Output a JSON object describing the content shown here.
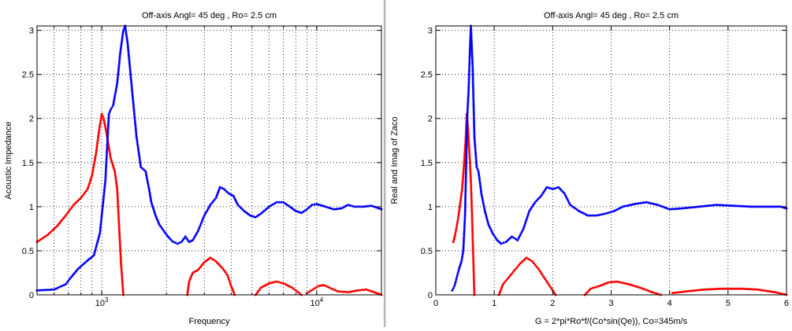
{
  "colors": {
    "real": "#ff0000",
    "imag": "#0000ff",
    "axis": "#000000",
    "grid": "#000000",
    "divider": "#d4d0c8"
  },
  "chart_data": [
    {
      "type": "line",
      "title": "Off-axis Angl= 45 deg  , Ro= 2.5 cm",
      "xlabel": "Frequency",
      "ylabel": "Acoustic Impedance",
      "xscale": "log",
      "xlim": [
        500,
        20000
      ],
      "ylim": [
        0,
        3.05
      ],
      "xticks": [
        1000,
        10000
      ],
      "xtick_labels": [
        "10",
        "10"
      ],
      "xtick_superscripts": [
        "3",
        "4"
      ],
      "yticks": [
        0,
        0.5,
        1,
        1.5,
        2,
        2.5,
        3
      ],
      "ytick_labels": [
        "0",
        "0.5",
        "1",
        "1.5",
        "2",
        "2.5",
        "3"
      ],
      "grid": true,
      "marker": "dot",
      "series": [
        {
          "color": "#ff0000",
          "segments": [
            [
              [
                500,
                0.6
              ],
              [
                560,
                0.68
              ],
              [
                620,
                0.78
              ],
              [
                680,
                0.9
              ],
              [
                740,
                1.02
              ],
              [
                800,
                1.1
              ],
              [
                860,
                1.2
              ],
              [
                900,
                1.35
              ],
              [
                940,
                1.6
              ],
              [
                970,
                1.85
              ],
              [
                1000,
                2.05
              ],
              [
                1020,
                2.0
              ],
              [
                1050,
                1.85
              ],
              [
                1100,
                1.55
              ],
              [
                1150,
                1.4
              ],
              [
                1180,
                1.2
              ],
              [
                1200,
                0.85
              ],
              [
                1230,
                0.35
              ],
              [
                1260,
                0.0
              ]
            ],
            [
              [
                2500,
                0.0
              ],
              [
                2550,
                0.15
              ],
              [
                2650,
                0.25
              ],
              [
                2800,
                0.28
              ],
              [
                3000,
                0.37
              ],
              [
                3200,
                0.42
              ],
              [
                3400,
                0.38
              ],
              [
                3650,
                0.3
              ],
              [
                3850,
                0.22
              ],
              [
                4000,
                0.1
              ],
              [
                4150,
                0.0
              ]
            ],
            [
              [
                5200,
                0.0
              ],
              [
                5500,
                0.08
              ],
              [
                6000,
                0.13
              ],
              [
                6500,
                0.15
              ],
              [
                7000,
                0.13
              ],
              [
                7700,
                0.08
              ],
              [
                8300,
                0.02
              ],
              [
                8500,
                0.0
              ]
            ],
            [
              [
                9000,
                0.02
              ],
              [
                9600,
                0.06
              ],
              [
                10200,
                0.1
              ],
              [
                10800,
                0.11
              ],
              [
                11500,
                0.08
              ],
              [
                12500,
                0.04
              ],
              [
                14000,
                0.03
              ],
              [
                15500,
                0.05
              ],
              [
                17000,
                0.06
              ],
              [
                18500,
                0.03
              ],
              [
                20000,
                0.0
              ]
            ]
          ]
        },
        {
          "color": "#0000ff",
          "segments": [
            [
              [
                500,
                0.05
              ],
              [
                600,
                0.06
              ],
              [
                680,
                0.12
              ],
              [
                720,
                0.2
              ],
              [
                780,
                0.3
              ],
              [
                850,
                0.38
              ],
              [
                920,
                0.45
              ],
              [
                980,
                0.7
              ],
              [
                1010,
                1.0
              ],
              [
                1040,
                1.3
              ],
              [
                1060,
                1.7
              ],
              [
                1080,
                2.05
              ],
              [
                1100,
                2.1
              ],
              [
                1130,
                2.15
              ],
              [
                1180,
                2.4
              ],
              [
                1220,
                2.75
              ],
              [
                1260,
                3.0
              ],
              [
                1285,
                3.05
              ],
              [
                1320,
                2.85
              ],
              [
                1380,
                2.35
              ],
              [
                1450,
                1.8
              ],
              [
                1520,
                1.45
              ],
              [
                1600,
                1.4
              ],
              [
                1660,
                1.2
              ],
              [
                1700,
                1.05
              ],
              [
                1780,
                0.9
              ],
              [
                1850,
                0.8
              ],
              [
                1950,
                0.72
              ],
              [
                2050,
                0.65
              ],
              [
                2150,
                0.6
              ],
              [
                2250,
                0.58
              ],
              [
                2350,
                0.6
              ],
              [
                2450,
                0.66
              ],
              [
                2550,
                0.6
              ],
              [
                2650,
                0.62
              ],
              [
                2800,
                0.72
              ],
              [
                3000,
                0.9
              ],
              [
                3200,
                1.02
              ],
              [
                3400,
                1.1
              ],
              [
                3550,
                1.22
              ],
              [
                3700,
                1.2
              ],
              [
                3900,
                1.15
              ],
              [
                4100,
                1.12
              ],
              [
                4300,
                1.02
              ],
              [
                4600,
                0.95
              ],
              [
                4900,
                0.9
              ],
              [
                5200,
                0.88
              ],
              [
                5500,
                0.92
              ],
              [
                6000,
                1.0
              ],
              [
                6500,
                1.05
              ],
              [
                7000,
                1.05
              ],
              [
                7500,
                1.0
              ],
              [
                8000,
                0.95
              ],
              [
                8500,
                0.93
              ],
              [
                9000,
                0.97
              ],
              [
                9500,
                1.02
              ],
              [
                10000,
                1.03
              ],
              [
                11000,
                1.0
              ],
              [
                12000,
                0.97
              ],
              [
                13000,
                0.98
              ],
              [
                14000,
                1.02
              ],
              [
                15000,
                1.0
              ],
              [
                16500,
                1.0
              ],
              [
                18000,
                1.01
              ],
              [
                20000,
                0.97
              ]
            ]
          ]
        }
      ]
    },
    {
      "type": "line",
      "title": "Off-axis Angl= 45 deg  , Ro= 2.5 cm",
      "xlabel": "G = 2*pi*Ro*f/(Co*sin(Qe)), Co=345m/s",
      "ylabel": "Real and Imag of Zaco",
      "xscale": "linear",
      "xlim": [
        0,
        6
      ],
      "ylim": [
        0,
        3.05
      ],
      "xticks": [
        0,
        1,
        2,
        3,
        4,
        5,
        6
      ],
      "xtick_labels": [
        "0",
        "1",
        "2",
        "3",
        "4",
        "5",
        "6"
      ],
      "yticks": [
        0,
        0.5,
        1,
        1.5,
        2,
        2.5,
        3
      ],
      "ytick_labels": [
        "0",
        "0.5",
        "1",
        "1.5",
        "2",
        "2.5",
        "3"
      ],
      "grid": true,
      "marker": "dot",
      "series": [
        {
          "color": "#ff0000",
          "segments": [
            [
              [
                0.3,
                0.6
              ],
              [
                0.33,
                0.68
              ],
              [
                0.36,
                0.78
              ],
              [
                0.39,
                0.9
              ],
              [
                0.42,
                1.05
              ],
              [
                0.45,
                1.2
              ],
              [
                0.48,
                1.45
              ],
              [
                0.51,
                1.75
              ],
              [
                0.53,
                2.05
              ],
              [
                0.55,
                1.9
              ],
              [
                0.58,
                1.55
              ],
              [
                0.6,
                1.3
              ],
              [
                0.62,
                0.9
              ],
              [
                0.64,
                0.45
              ],
              [
                0.66,
                0.0
              ]
            ],
            [
              [
                1.08,
                0.0
              ],
              [
                1.15,
                0.12
              ],
              [
                1.25,
                0.2
              ],
              [
                1.35,
                0.28
              ],
              [
                1.45,
                0.36
              ],
              [
                1.55,
                0.42
              ],
              [
                1.65,
                0.38
              ],
              [
                1.75,
                0.3
              ],
              [
                1.85,
                0.2
              ],
              [
                1.95,
                0.1
              ],
              [
                2.05,
                0.0
              ]
            ],
            [
              [
                2.55,
                0.0
              ],
              [
                2.65,
                0.07
              ],
              [
                2.8,
                0.1
              ],
              [
                2.95,
                0.14
              ],
              [
                3.1,
                0.15
              ],
              [
                3.3,
                0.12
              ],
              [
                3.5,
                0.08
              ],
              [
                3.7,
                0.03
              ],
              [
                3.85,
                0.0
              ]
            ],
            [
              [
                4.05,
                0.02
              ],
              [
                4.3,
                0.04
              ],
              [
                4.6,
                0.06
              ],
              [
                4.9,
                0.07
              ],
              [
                5.2,
                0.07
              ],
              [
                5.5,
                0.06
              ],
              [
                5.8,
                0.03
              ],
              [
                6.0,
                0.0
              ]
            ]
          ]
        },
        {
          "color": "#0000ff",
          "segments": [
            [
              [
                0.28,
                0.05
              ],
              [
                0.32,
                0.1
              ],
              [
                0.36,
                0.2
              ],
              [
                0.4,
                0.3
              ],
              [
                0.44,
                0.38
              ],
              [
                0.47,
                0.5
              ],
              [
                0.5,
                0.9
              ],
              [
                0.52,
                1.5
              ],
              [
                0.54,
                2.05
              ],
              [
                0.56,
                2.3
              ],
              [
                0.58,
                2.7
              ],
              [
                0.6,
                3.05
              ],
              [
                0.63,
                2.6
              ],
              [
                0.66,
                1.8
              ],
              [
                0.7,
                1.45
              ],
              [
                0.73,
                1.4
              ],
              [
                0.78,
                1.15
              ],
              [
                0.84,
                0.95
              ],
              [
                0.9,
                0.8
              ],
              [
                0.97,
                0.7
              ],
              [
                1.05,
                0.62
              ],
              [
                1.12,
                0.58
              ],
              [
                1.2,
                0.6
              ],
              [
                1.3,
                0.66
              ],
              [
                1.4,
                0.62
              ],
              [
                1.5,
                0.75
              ],
              [
                1.6,
                0.95
              ],
              [
                1.7,
                1.05
              ],
              [
                1.8,
                1.12
              ],
              [
                1.9,
                1.22
              ],
              [
                2.0,
                1.2
              ],
              [
                2.1,
                1.22
              ],
              [
                2.2,
                1.15
              ],
              [
                2.3,
                1.02
              ],
              [
                2.45,
                0.95
              ],
              [
                2.6,
                0.9
              ],
              [
                2.75,
                0.9
              ],
              [
                2.9,
                0.92
              ],
              [
                3.05,
                0.95
              ],
              [
                3.2,
                1.0
              ],
              [
                3.4,
                1.03
              ],
              [
                3.6,
                1.05
              ],
              [
                3.8,
                1.02
              ],
              [
                4.0,
                0.97
              ],
              [
                4.2,
                0.98
              ],
              [
                4.5,
                1.0
              ],
              [
                4.8,
                1.02
              ],
              [
                5.1,
                1.01
              ],
              [
                5.4,
                1.0
              ],
              [
                5.7,
                1.0
              ],
              [
                5.9,
                1.0
              ],
              [
                6.0,
                0.98
              ]
            ]
          ]
        }
      ]
    }
  ]
}
